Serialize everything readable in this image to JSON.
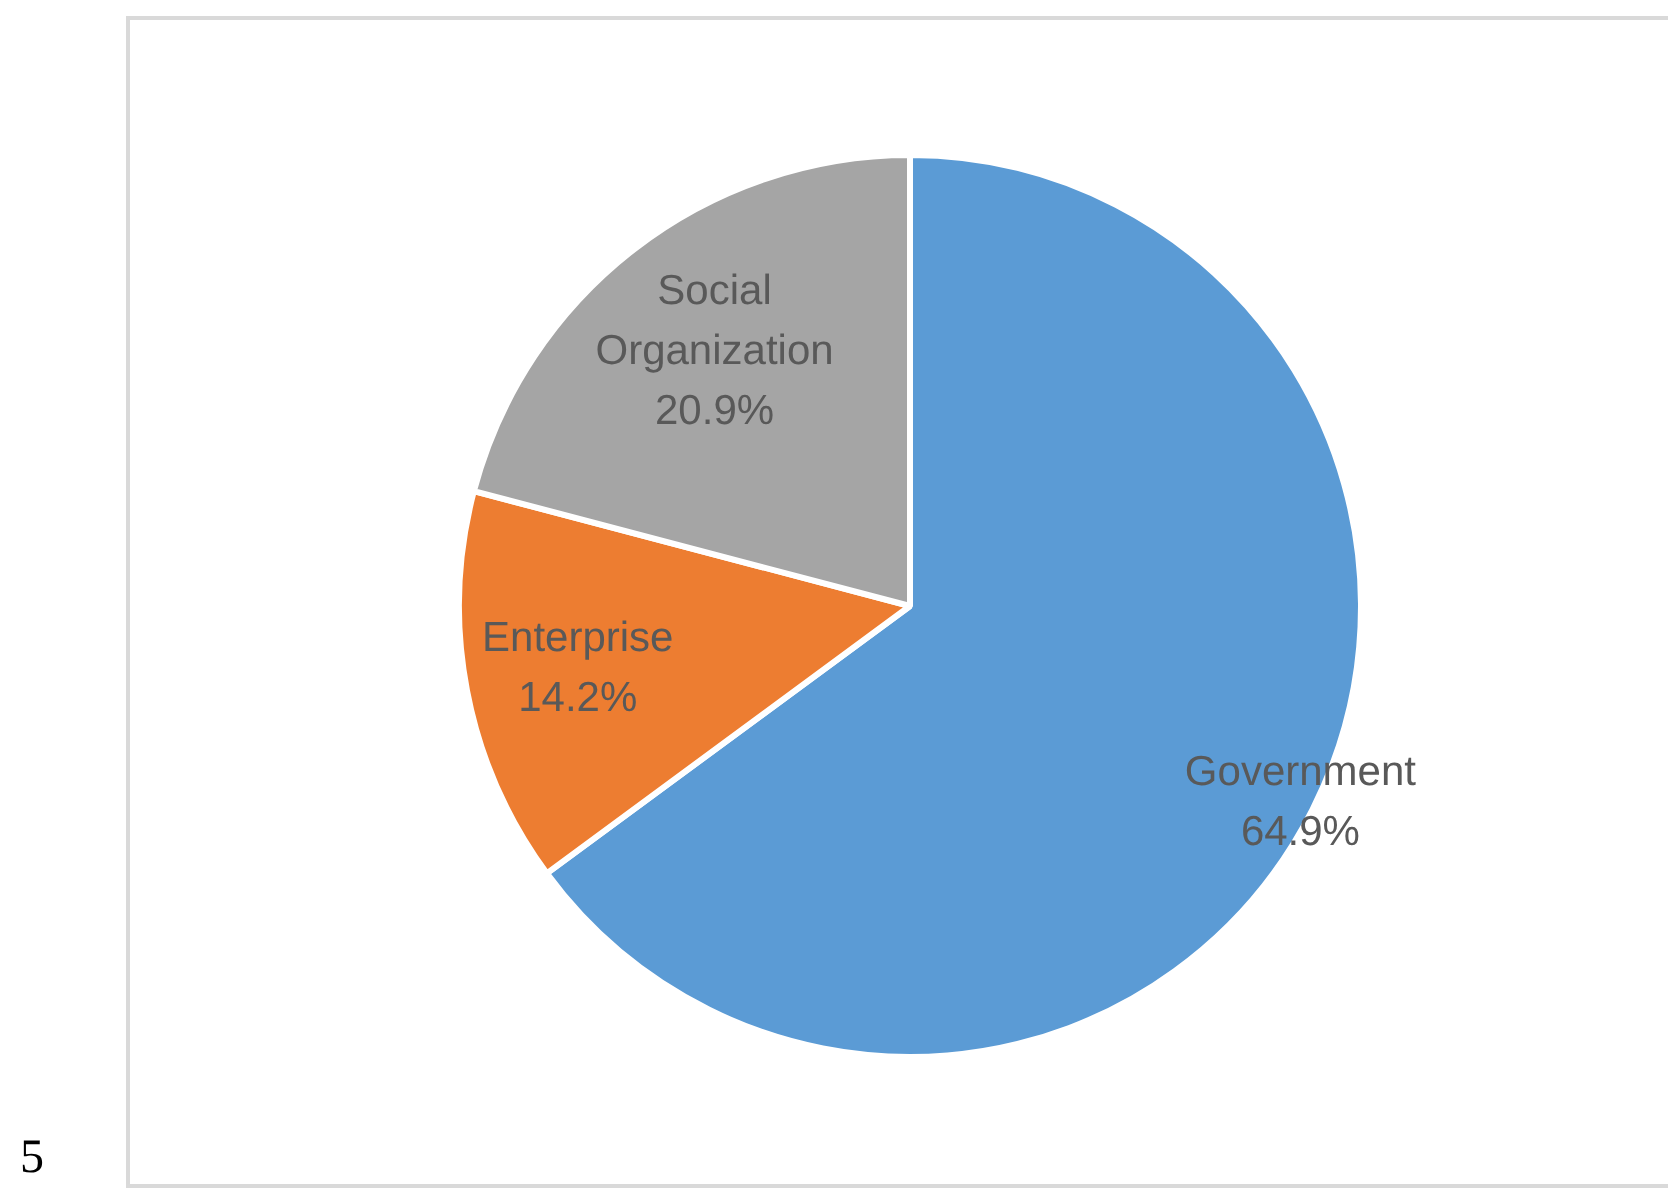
{
  "chart_data": {
    "type": "pie",
    "categories": [
      "Government",
      "Enterprise",
      "Social Organization"
    ],
    "values": [
      64.9,
      14.2,
      20.9
    ],
    "colors": [
      "#5b9bd5",
      "#ed7d31",
      "#a5a5a5"
    ],
    "value_labels": [
      "64.9%",
      "14.2%",
      "20.9%"
    ],
    "legend": false,
    "annotations": [
      "5"
    ]
  }
}
